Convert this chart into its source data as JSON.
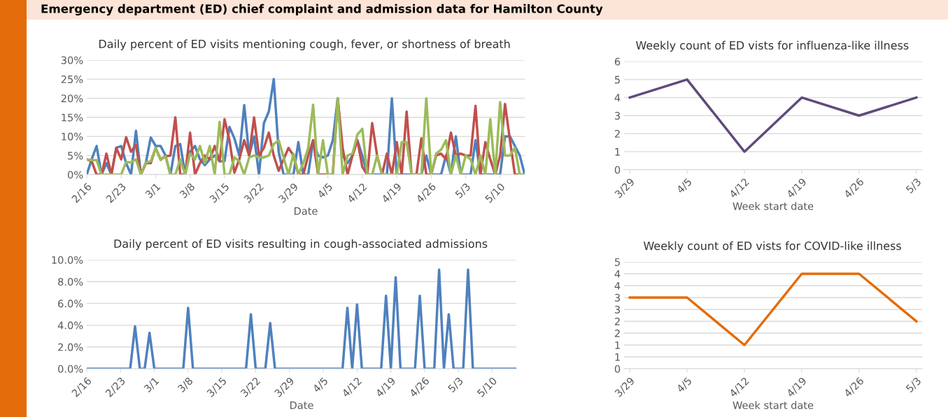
{
  "chart_data": [
    {
      "type": "line",
      "title": "Daily percent of ED visits mentioning cough, fever, or shortness of breath",
      "xlabel": "Date",
      "annotations": [
        "Emergency department (ED) chief complaint and admission data for Hamilton County"
      ],
      "categories": [
        "2/16",
        null,
        null,
        null,
        null,
        null,
        null,
        "2/23",
        null,
        null,
        null,
        null,
        null,
        null,
        "3/1",
        null,
        null,
        null,
        null,
        null,
        null,
        "3/8",
        null,
        null,
        null,
        null,
        null,
        null,
        "3/15",
        null,
        null,
        null,
        null,
        null,
        null,
        "3/22",
        null,
        null,
        null,
        null,
        null,
        null,
        "3/29",
        null,
        null,
        null,
        null,
        null,
        null,
        "4/5",
        null,
        null,
        null,
        null,
        null,
        null,
        "4/12",
        null,
        null,
        null,
        null,
        null,
        null,
        "4/19",
        null,
        null,
        null,
        null,
        null,
        null,
        "4/26",
        null,
        null,
        null,
        null,
        null,
        null,
        "5/3",
        null,
        null,
        null,
        null,
        null,
        null,
        "5/10",
        null,
        null,
        null,
        null,
        null
      ],
      "series": [
        {
          "color": "#4f81bd",
          "values": [
            0,
            4,
            7.5,
            0,
            3,
            0,
            7,
            7.5,
            3,
            0,
            11.5,
            0,
            3,
            9.7,
            7.5,
            7.5,
            5,
            0,
            7.5,
            8,
            0,
            6,
            7.5,
            4,
            2.5,
            4,
            5,
            3.5,
            3.5,
            12.5,
            9.5,
            5,
            18.2,
            5,
            10,
            0,
            13.5,
            16.5,
            25,
            6,
            0,
            0,
            0,
            8.5,
            0,
            0,
            9,
            5,
            4.5,
            5,
            9,
            20,
            5,
            3,
            5,
            9,
            5,
            0,
            0,
            0,
            0,
            0,
            20,
            0,
            0,
            0,
            0,
            0,
            0,
            5,
            0,
            0,
            0,
            5,
            0,
            10,
            0,
            0,
            0,
            9,
            0,
            0,
            0,
            0,
            0,
            10,
            10,
            7.5,
            5,
            0
          ]
        },
        {
          "color": "#c0504d",
          "values": [
            4,
            3.5,
            0,
            0,
            5.5,
            0,
            7,
            4,
            9.8,
            6,
            7.8,
            0,
            3,
            3,
            7,
            4,
            4.8,
            5,
            15,
            0,
            0,
            11,
            0,
            3,
            5,
            4,
            7.5,
            3.5,
            14.5,
            9,
            0.5,
            4,
            9,
            5,
            15,
            5,
            7,
            11,
            5,
            1,
            4,
            7,
            5,
            0,
            0,
            5,
            9,
            0,
            0,
            0,
            0,
            20,
            7,
            0,
            5,
            9,
            2,
            0,
            13.5,
            5,
            0,
            5.5,
            0,
            8.5,
            0,
            16.5,
            0,
            0,
            9.5,
            0,
            0,
            5,
            5.5,
            4,
            11,
            5,
            5.5,
            5,
            5,
            18,
            0,
            8.5,
            4,
            0,
            5,
            18.5,
            9,
            0,
            0,
            0
          ]
        },
        {
          "color": "#9bbb59",
          "values": [
            4,
            3.8,
            3.8,
            0,
            0,
            0,
            0,
            0,
            3.3,
            3.2,
            4,
            0,
            3.2,
            3.5,
            7,
            3.8,
            4.8,
            0,
            0,
            4,
            0,
            5.5,
            4,
            7.5,
            3,
            7.5,
            0,
            13.8,
            0,
            0,
            4.5,
            3.5,
            0,
            4.5,
            5,
            4.5,
            4.5,
            5,
            8,
            9,
            4.5,
            0,
            5.5,
            0,
            3,
            7,
            18.3,
            0,
            9,
            0,
            0,
            20,
            0,
            5,
            5.5,
            10.5,
            12,
            0,
            0,
            5,
            0,
            0,
            0,
            0,
            8.5,
            8.5,
            0,
            0,
            0,
            20,
            0,
            5.5,
            6.5,
            9,
            0,
            5,
            0,
            5,
            4,
            0,
            5,
            0,
            14.5,
            0,
            19,
            5,
            5,
            7,
            0,
            0
          ]
        }
      ],
      "ylim": [
        0,
        30
      ],
      "yticks": [
        {
          "value": 0,
          "label": "0%"
        },
        {
          "value": 5,
          "label": "5%"
        },
        {
          "value": 10,
          "label": "10%"
        },
        {
          "value": 15,
          "label": "15%"
        },
        {
          "value": 20,
          "label": "20%"
        },
        {
          "value": 25,
          "label": "25%"
        },
        {
          "value": 30,
          "label": "30%"
        }
      ],
      "grid": "y"
    },
    {
      "type": "line",
      "title": "Weekly count of ED vists for influenza-like illness",
      "xlabel": "Week start date",
      "categories": [
        "3/29",
        "4/5",
        "4/12",
        "4/19",
        "4/26",
        "5/3"
      ],
      "series": [
        {
          "color": "#604a7b",
          "values": [
            4,
            5,
            1,
            4,
            3,
            4
          ]
        }
      ],
      "ylim": [
        0,
        6
      ],
      "yticks": [
        0,
        1,
        2,
        3,
        4,
        5,
        6
      ],
      "grid": "y"
    },
    {
      "type": "line",
      "title": "Daily percent of ED visits resulting in cough-associated admissions",
      "xlabel": "Date",
      "categories": [
        "2/16",
        null,
        null,
        null,
        null,
        null,
        null,
        "2/23",
        null,
        null,
        null,
        null,
        null,
        null,
        "3/1",
        null,
        null,
        null,
        null,
        null,
        null,
        "3/8",
        null,
        null,
        null,
        null,
        null,
        null,
        "3/15",
        null,
        null,
        null,
        null,
        null,
        null,
        "3/22",
        null,
        null,
        null,
        null,
        null,
        null,
        "3/29",
        null,
        null,
        null,
        null,
        null,
        null,
        "4/5",
        null,
        null,
        null,
        null,
        null,
        null,
        "4/12",
        null,
        null,
        null,
        null,
        null,
        null,
        "4/19",
        null,
        null,
        null,
        null,
        null,
        null,
        "4/26",
        null,
        null,
        null,
        null,
        null,
        null,
        "5/3",
        null,
        null,
        null,
        null,
        null,
        null,
        "5/10",
        null,
        null,
        null,
        null,
        null
      ],
      "series": [
        {
          "color": "#4f81bd",
          "values": [
            0,
            0,
            0,
            0,
            0,
            0,
            0,
            0,
            0,
            0,
            3.9,
            0,
            0,
            3.3,
            0,
            0,
            0,
            0,
            0,
            0,
            0,
            5.6,
            0,
            0,
            0,
            0,
            0,
            0,
            0,
            0,
            0,
            0,
            0,
            0,
            5.0,
            0,
            0,
            0,
            4.2,
            0,
            0,
            0,
            0,
            0,
            0,
            0,
            0,
            0,
            0,
            0,
            0,
            0,
            0,
            0,
            5.6,
            0,
            5.9,
            0,
            0,
            0,
            0,
            0,
            6.7,
            0,
            8.4,
            0,
            0,
            0,
            0,
            6.7,
            0,
            0,
            0,
            9.1,
            0,
            5.0,
            0,
            0,
            0,
            9.1,
            0,
            0,
            0,
            0,
            0,
            0,
            0,
            0,
            0,
            0
          ]
        }
      ],
      "ylim": [
        0,
        10
      ],
      "yticks": [
        {
          "value": 0,
          "label": "0.0%"
        },
        {
          "value": 2,
          "label": "2.0%"
        },
        {
          "value": 4,
          "label": "4.0%"
        },
        {
          "value": 6,
          "label": "6.0%"
        },
        {
          "value": 8,
          "label": "8.0%"
        },
        {
          "value": 10,
          "label": "10.0%"
        }
      ],
      "grid": "y"
    },
    {
      "type": "line",
      "title": "Weekly count of ED vists for COVID-like illness",
      "xlabel": "Week start date",
      "categories": [
        "3/29",
        "4/5",
        "4/12",
        "4/19",
        "4/26",
        "5/3"
      ],
      "series": [
        {
          "color": "#e36c09",
          "values": [
            3,
            3,
            1,
            4,
            4,
            2
          ]
        }
      ],
      "ylim": [
        0,
        4.5
      ],
      "yticks": [
        0,
        {
          "value": 0.5,
          "label": "1"
        },
        1,
        {
          "value": 1.5,
          "label": "2"
        },
        2,
        {
          "value": 2.5,
          "label": "3"
        },
        3,
        {
          "value": 3.5,
          "label": "4"
        },
        4,
        {
          "value": 4.5,
          "label": "5"
        }
      ],
      "grid": "y"
    }
  ]
}
